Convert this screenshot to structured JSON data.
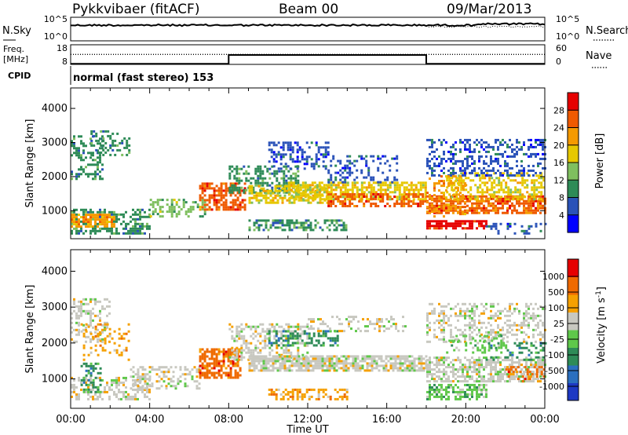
{
  "header": {
    "station": "Pykkvibaer (fitACF)",
    "beam": "Beam 00",
    "date": "09/Mar/2013"
  },
  "status_panels": {
    "nsky_label": "N.Sky",
    "nsearch_label": "N.Search",
    "nsky_ticks": [
      "10^5",
      "10^0"
    ],
    "nsearch_ticks": [
      "10^5",
      "10^0"
    ],
    "freq_label_top": "Freq.",
    "freq_label_unit": "[MHz]",
    "freq_ticks": [
      "18",
      "8"
    ],
    "nave_label": "Nave",
    "nave_ticks": [
      "60",
      "0"
    ],
    "cpid_label": "CPID",
    "cpid_text": "normal (fast stereo) 153",
    "freq_steps": [
      {
        "start_h": 0,
        "end_h": 8,
        "mhz": 8.7
      },
      {
        "start_h": 8,
        "end_h": 18,
        "mhz": 13.2
      },
      {
        "start_h": 18,
        "end_h": 24,
        "mhz": 8.7
      }
    ],
    "freq_dotted_mhz": 13.5
  },
  "chart_data": [
    {
      "type": "heatmap",
      "title": "",
      "xlabel": "",
      "ylabel": "Slant Range [km]",
      "xlim": [
        0,
        24
      ],
      "ylim": [
        180,
        4600
      ],
      "yticks": [
        1000,
        2000,
        3000,
        4000
      ],
      "colorbar": {
        "label": "Power [dB]",
        "ticks": [
          "4",
          "8",
          "12",
          "16",
          "20",
          "24",
          "28"
        ],
        "colors": [
          "#0000ff",
          "#2a52b8",
          "#2e8b57",
          "#7fbf5f",
          "#e6c800",
          "#f59a00",
          "#ef5a00",
          "#e60000"
        ]
      },
      "bands": [
        {
          "t0": 0.0,
          "t1": 1.6,
          "r0": 1900,
          "r1": 3200,
          "c": 2,
          "s": 0.38
        },
        {
          "t0": 0.0,
          "t1": 2.2,
          "r0": 500,
          "r1": 900,
          "c": 5,
          "s": 0.75
        },
        {
          "t0": 0.0,
          "t1": 4.0,
          "r0": 300,
          "r1": 1000,
          "c": 2,
          "s": 0.45
        },
        {
          "t0": 1.0,
          "t1": 3.0,
          "r0": 2600,
          "r1": 3300,
          "c": 2,
          "s": 0.35
        },
        {
          "t0": 4.0,
          "t1": 6.8,
          "r0": 800,
          "r1": 1300,
          "c": 3,
          "s": 0.4
        },
        {
          "t0": 6.5,
          "t1": 8.8,
          "r0": 1000,
          "r1": 1800,
          "c": 6,
          "s": 0.65
        },
        {
          "t0": 8.0,
          "t1": 11.5,
          "r0": 1500,
          "r1": 2300,
          "c": 2,
          "s": 0.5
        },
        {
          "t0": 9.0,
          "t1": 13.0,
          "r0": 1200,
          "r1": 1700,
          "c": 4,
          "s": 0.6
        },
        {
          "t0": 10.0,
          "t1": 13.0,
          "r0": 2200,
          "r1": 3000,
          "c": 1,
          "s": 0.35
        },
        {
          "t0": 11.0,
          "t1": 18.0,
          "r0": 1300,
          "r1": 1800,
          "c": 4,
          "s": 0.65
        },
        {
          "t0": 13.0,
          "t1": 18.0,
          "r0": 1100,
          "r1": 1500,
          "c": 6,
          "s": 0.55
        },
        {
          "t0": 13.0,
          "t1": 16.5,
          "r0": 1800,
          "r1": 2600,
          "c": 1,
          "s": 0.3
        },
        {
          "t0": 9.0,
          "t1": 14.0,
          "r0": 400,
          "r1": 700,
          "c": 2,
          "s": 0.55
        },
        {
          "t0": 18.0,
          "t1": 21.0,
          "r0": 450,
          "r1": 700,
          "c": 7,
          "s": 0.75
        },
        {
          "t0": 18.0,
          "t1": 24.0,
          "r0": 900,
          "r1": 1400,
          "c": 6,
          "s": 0.7
        },
        {
          "t0": 19.0,
          "t1": 24.0,
          "r0": 1300,
          "r1": 2100,
          "c": 4,
          "s": 0.5
        },
        {
          "t0": 18.0,
          "t1": 24.0,
          "r0": 2000,
          "r1": 3100,
          "c": 1,
          "s": 0.35
        },
        {
          "t0": 18.0,
          "t1": 20.0,
          "r0": 800,
          "r1": 2000,
          "c": 5,
          "s": 0.3
        },
        {
          "t0": 21.0,
          "t1": 24.0,
          "r0": 300,
          "r1": 600,
          "c": 1,
          "s": 0.3
        }
      ]
    },
    {
      "type": "heatmap",
      "title": "",
      "xlabel": "Time UT",
      "ylabel": "Slant Range [km]",
      "xlim": [
        0,
        24
      ],
      "ylim": [
        180,
        4600
      ],
      "yticks": [
        1000,
        2000,
        3000,
        4000
      ],
      "xticks": [
        "00:00",
        "04:00",
        "08:00",
        "12:00",
        "16:00",
        "20:00",
        "00:00"
      ],
      "colorbar": {
        "label": "Velocity [m s^-1]",
        "ticks": [
          "1000",
          "500",
          "100",
          "25",
          "-25",
          "-100",
          "-500",
          "-1000"
        ],
        "colors": [
          "#1d39c4",
          "#2b6fbf",
          "#2e8b57",
          "#5fc84a",
          "#c8c8c0",
          "#f5a000",
          "#ef6a00",
          "#e60000"
        ]
      },
      "bands": [
        {
          "t0": 0.0,
          "t1": 2.0,
          "r0": 2000,
          "r1": 3200,
          "c": 4,
          "s": 0.35
        },
        {
          "t0": 0.0,
          "t1": 4.0,
          "r0": 400,
          "r1": 1000,
          "c": 4,
          "s": 0.45
        },
        {
          "t0": 0.5,
          "t1": 3.0,
          "r0": 1500,
          "r1": 2500,
          "c": 5,
          "s": 0.2
        },
        {
          "t0": 0.5,
          "t1": 1.5,
          "r0": 600,
          "r1": 1400,
          "c": 2,
          "s": 0.4
        },
        {
          "t0": 3.0,
          "t1": 6.5,
          "r0": 700,
          "r1": 1300,
          "c": 4,
          "s": 0.4
        },
        {
          "t0": 6.5,
          "t1": 8.6,
          "r0": 1000,
          "r1": 1800,
          "c": 6,
          "s": 0.7
        },
        {
          "t0": 8.0,
          "t1": 12.0,
          "r0": 1500,
          "r1": 2500,
          "c": 4,
          "s": 0.45
        },
        {
          "t0": 9.0,
          "t1": 18.0,
          "r0": 1200,
          "r1": 1600,
          "c": 4,
          "s": 0.8
        },
        {
          "t0": 10.0,
          "t1": 13.5,
          "r0": 1900,
          "r1": 2300,
          "c": 2,
          "s": 0.45
        },
        {
          "t0": 10.0,
          "t1": 14.0,
          "r0": 400,
          "r1": 700,
          "c": 5,
          "s": 0.5
        },
        {
          "t0": 12.0,
          "t1": 17.0,
          "r0": 2300,
          "r1": 2700,
          "c": 4,
          "s": 0.3
        },
        {
          "t0": 18.0,
          "t1": 24.0,
          "r0": 900,
          "r1": 1600,
          "c": 4,
          "s": 0.65
        },
        {
          "t0": 18.0,
          "t1": 21.0,
          "r0": 400,
          "r1": 800,
          "c": 3,
          "s": 0.6
        },
        {
          "t0": 18.0,
          "t1": 24.0,
          "r0": 2000,
          "r1": 3100,
          "c": 4,
          "s": 0.35
        },
        {
          "t0": 19.0,
          "t1": 22.0,
          "r0": 1700,
          "r1": 2200,
          "c": 3,
          "s": 0.35
        },
        {
          "t0": 21.0,
          "t1": 24.0,
          "r0": 1500,
          "r1": 2000,
          "c": 2,
          "s": 0.3
        },
        {
          "t0": 22.0,
          "t1": 24.0,
          "r0": 900,
          "r1": 1300,
          "c": 6,
          "s": 0.35
        }
      ]
    }
  ]
}
